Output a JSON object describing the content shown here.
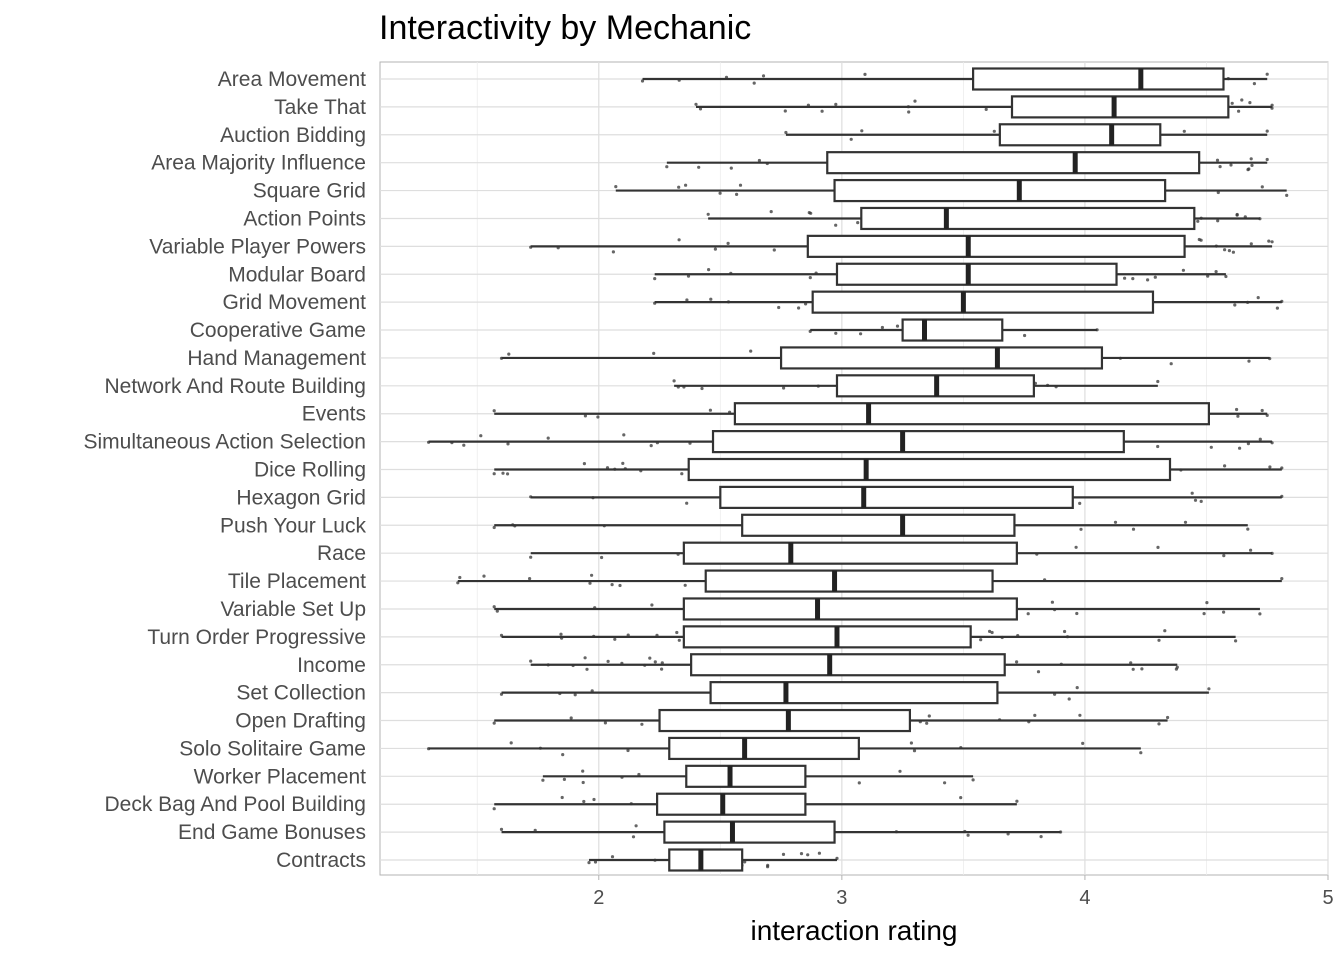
{
  "chart_data": {
    "type": "boxplot",
    "title": "Interactivity by Mechanic",
    "xlabel": "interaction rating",
    "ylabel": "",
    "xlim": [
      1.1,
      5
    ],
    "xticks": [
      2,
      3,
      4,
      5
    ],
    "grid": true,
    "orientation": "horizontal",
    "categories": [
      "Area Movement",
      "Take That",
      "Auction Bidding",
      "Area Majority Influence",
      "Square Grid",
      "Action Points",
      "Variable Player Powers",
      "Modular Board",
      "Grid Movement",
      "Cooperative Game",
      "Hand Management",
      "Network And Route Building",
      "Events",
      "Simultaneous Action Selection",
      "Dice Rolling",
      "Hexagon Grid",
      "Push Your Luck",
      "Race",
      "Tile Placement",
      "Variable Set Up",
      "Turn Order Progressive",
      "Income",
      "Set Collection",
      "Open Drafting",
      "Solo Solitaire Game",
      "Worker Placement",
      "Deck Bag And Pool Building",
      "End Game Bonuses",
      "Contracts"
    ],
    "boxes": [
      {
        "min": 2.18,
        "q1": 3.54,
        "median": 4.23,
        "q3": 4.57,
        "max": 4.75
      },
      {
        "min": 2.4,
        "q1": 3.7,
        "median": 4.12,
        "q3": 4.59,
        "max": 4.77
      },
      {
        "min": 2.77,
        "q1": 3.65,
        "median": 4.11,
        "q3": 4.31,
        "max": 4.75
      },
      {
        "min": 2.28,
        "q1": 2.94,
        "median": 3.96,
        "q3": 4.47,
        "max": 4.75
      },
      {
        "min": 2.07,
        "q1": 2.97,
        "median": 3.73,
        "q3": 4.33,
        "max": 4.83
      },
      {
        "min": 2.45,
        "q1": 3.08,
        "median": 3.43,
        "q3": 4.45,
        "max": 4.72
      },
      {
        "min": 1.72,
        "q1": 2.86,
        "median": 3.52,
        "q3": 4.41,
        "max": 4.77
      },
      {
        "min": 2.23,
        "q1": 2.98,
        "median": 3.52,
        "q3": 4.13,
        "max": 4.58
      },
      {
        "min": 2.23,
        "q1": 2.88,
        "median": 3.5,
        "q3": 4.28,
        "max": 4.81
      },
      {
        "min": 2.87,
        "q1": 3.25,
        "median": 3.34,
        "q3": 3.66,
        "max": 4.05
      },
      {
        "min": 1.6,
        "q1": 2.75,
        "median": 3.64,
        "q3": 4.07,
        "max": 4.76
      },
      {
        "min": 2.31,
        "q1": 2.98,
        "median": 3.39,
        "q3": 3.79,
        "max": 4.3
      },
      {
        "min": 1.57,
        "q1": 2.56,
        "median": 3.11,
        "q3": 4.51,
        "max": 4.75
      },
      {
        "min": 1.3,
        "q1": 2.47,
        "median": 3.25,
        "q3": 4.16,
        "max": 4.77
      },
      {
        "min": 1.57,
        "q1": 2.37,
        "median": 3.1,
        "q3": 4.35,
        "max": 4.81
      },
      {
        "min": 1.72,
        "q1": 2.5,
        "median": 3.09,
        "q3": 3.95,
        "max": 4.81
      },
      {
        "min": 1.57,
        "q1": 2.59,
        "median": 3.25,
        "q3": 3.71,
        "max": 4.67
      },
      {
        "min": 1.72,
        "q1": 2.35,
        "median": 2.79,
        "q3": 3.72,
        "max": 4.77
      },
      {
        "min": 1.42,
        "q1": 2.44,
        "median": 2.97,
        "q3": 3.62,
        "max": 4.81
      },
      {
        "min": 1.57,
        "q1": 2.35,
        "median": 2.9,
        "q3": 3.72,
        "max": 4.72
      },
      {
        "min": 1.6,
        "q1": 2.35,
        "median": 2.98,
        "q3": 3.53,
        "max": 4.62
      },
      {
        "min": 1.72,
        "q1": 2.38,
        "median": 2.95,
        "q3": 3.67,
        "max": 4.38
      },
      {
        "min": 1.6,
        "q1": 2.46,
        "median": 2.77,
        "q3": 3.64,
        "max": 4.51
      },
      {
        "min": 1.57,
        "q1": 2.25,
        "median": 2.78,
        "q3": 3.28,
        "max": 4.34
      },
      {
        "min": 1.3,
        "q1": 2.29,
        "median": 2.6,
        "q3": 3.07,
        "max": 4.23
      },
      {
        "min": 1.77,
        "q1": 2.36,
        "median": 2.54,
        "q3": 2.85,
        "max": 3.54
      },
      {
        "min": 1.57,
        "q1": 2.24,
        "median": 2.51,
        "q3": 2.85,
        "max": 3.72
      },
      {
        "min": 1.6,
        "q1": 2.27,
        "median": 2.55,
        "q3": 2.97,
        "max": 3.9
      },
      {
        "min": 1.96,
        "q1": 2.29,
        "median": 2.42,
        "q3": 2.59,
        "max": 2.98
      }
    ]
  }
}
